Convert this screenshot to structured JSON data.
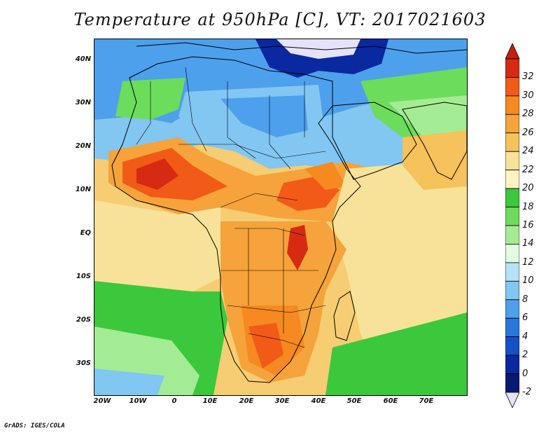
{
  "title": "Temperature at 950hPa [C], VT: 2017021603",
  "credit": "GrADS: IGES/COLA",
  "map": {
    "lat_labels": [
      "40N",
      "30N",
      "20N",
      "10N",
      "EQ",
      "10S",
      "20S",
      "30S"
    ],
    "lon_labels": [
      "20W",
      "10W",
      "0",
      "10E",
      "20E",
      "30E",
      "40E",
      "50E",
      "60E",
      "70E"
    ]
  },
  "colorbar": {
    "labels": [
      "32",
      "30",
      "28",
      "26",
      "24",
      "22",
      "20",
      "18",
      "16",
      "14",
      "12",
      "10",
      "8",
      "6",
      "4",
      "2",
      "0",
      "-2"
    ],
    "colors": [
      "#d62b12",
      "#f25a18",
      "#f6891f",
      "#f5a33a",
      "#f5c25b",
      "#f8e29a",
      "#fdf3c2",
      "#3cc83c",
      "#6cdc5c",
      "#a4ec94",
      "#e2fbe2",
      "#b4e2f6",
      "#82c6f2",
      "#4da0ec",
      "#2878dc",
      "#1450c8",
      "#0a28a0",
      "#061a72"
    ],
    "top_color": "#c81e0a",
    "bottom_color": "#e6e2fa"
  },
  "colors": {
    "background": "#ffffff",
    "boundaries": "#000000"
  }
}
